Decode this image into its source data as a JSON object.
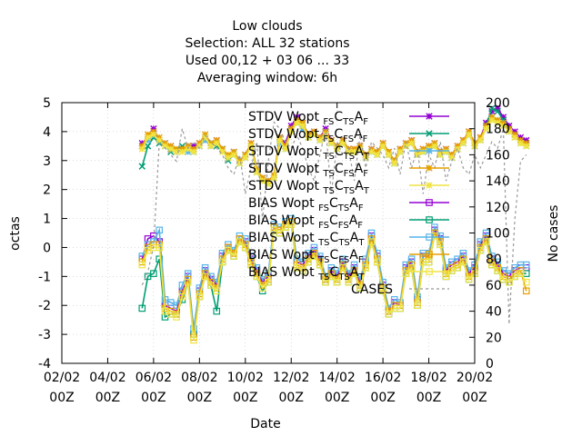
{
  "chart_data": {
    "type": "line",
    "title_lines": [
      "Low clouds",
      "Selection: ALL      32 stations",
      "Used  00,12  + 03 06 ... 33",
      "Averaging window:  6h"
    ],
    "xlabel": "Date",
    "ylabel": "octas",
    "y2label": "No cases",
    "xlim": [
      "2024-02-02 00:00",
      "2024-02-20 00:00"
    ],
    "ylim": [
      -4,
      5
    ],
    "y2lim": [
      0,
      200
    ],
    "xticks": [
      {
        "day": "02/02",
        "hour": "00Z"
      },
      {
        "day": "04/02",
        "hour": "00Z"
      },
      {
        "day": "06/02",
        "hour": "00Z"
      },
      {
        "day": "08/02",
        "hour": "00Z"
      },
      {
        "day": "10/02",
        "hour": "00Z"
      },
      {
        "day": "12/02",
        "hour": "00Z"
      },
      {
        "day": "14/02",
        "hour": "00Z"
      },
      {
        "day": "16/02",
        "hour": "00Z"
      },
      {
        "day": "18/02",
        "hour": "00Z"
      },
      {
        "day": "20/02",
        "hour": "00Z"
      }
    ],
    "yticks": [
      "-4",
      "-3",
      "-2",
      "-1",
      "0",
      "1",
      "2",
      "3",
      "4",
      "5"
    ],
    "y2ticks": [
      "0",
      "20",
      "40",
      "60",
      "80",
      "100",
      "120",
      "140",
      "160",
      "180",
      "200"
    ],
    "x_hours": [
      84,
      90,
      96,
      102,
      108,
      114,
      120,
      126,
      132,
      138,
      144,
      150,
      156,
      162,
      168,
      174,
      180,
      186,
      192,
      198,
      204,
      210,
      216,
      222,
      228,
      234,
      240,
      246,
      252,
      258,
      264,
      270,
      276,
      282,
      288,
      294,
      300,
      306,
      312,
      318,
      324,
      330,
      336,
      342,
      348,
      354,
      360,
      366,
      372,
      378,
      384,
      390,
      396,
      402,
      408,
      414,
      420,
      426,
      432,
      438,
      444,
      450,
      456,
      462,
      468,
      474,
      480,
      486
    ],
    "series": [
      {
        "name": "STDV Wopt",
        "sub": [
          "FS",
          "C",
          "TS",
          "A",
          "F"
        ],
        "color": "#9400d3",
        "marker": "star",
        "axis": "y",
        "values": [
          3.6,
          3.8,
          4.1,
          3.7,
          3.6,
          3.5,
          3.3,
          3.4,
          3.5,
          3.5,
          3.6,
          3.8,
          3.5,
          3.7,
          3.4,
          3.1,
          3.3,
          3.0,
          3.2,
          3.6,
          2.7,
          2.4,
          2.3,
          2.5,
          3.8,
          3.6,
          4.2,
          4.5,
          4.3,
          3.9,
          4.0,
          3.8,
          4.1,
          3.7,
          3.5,
          3.7,
          3.4,
          3.4,
          3.5,
          3.2,
          3.4,
          3.3,
          3.6,
          3.3,
          3.0,
          3.4,
          3.6,
          3.7,
          3.3,
          3.4,
          3.5,
          3.6,
          3.3,
          3.4,
          3.2,
          3.5,
          3.7,
          4.0,
          3.6,
          3.8,
          4.3,
          4.7,
          4.8,
          4.5,
          4.2,
          4.0,
          3.8,
          3.7
        ]
      },
      {
        "name": "STDV Wopt",
        "sub": [
          "FS",
          "C",
          "FS",
          "A",
          "F"
        ],
        "color": "#009e73",
        "marker": "cross",
        "axis": "y",
        "values": [
          2.8,
          3.5,
          3.8,
          3.6,
          3.5,
          3.3,
          3.4,
          3.5,
          3.4,
          3.3,
          3.5,
          3.8,
          3.6,
          3.5,
          3.4,
          3.0,
          3.2,
          2.9,
          3.1,
          3.5,
          2.6,
          2.3,
          2.2,
          2.4,
          3.7,
          3.5,
          4.1,
          4.4,
          4.2,
          3.8,
          3.9,
          3.7,
          4.0,
          3.6,
          3.4,
          3.6,
          3.3,
          3.3,
          3.4,
          3.1,
          3.3,
          3.2,
          3.5,
          3.2,
          2.9,
          3.3,
          3.5,
          3.6,
          3.2,
          3.3,
          3.4,
          3.5,
          3.2,
          3.3,
          3.1,
          3.4,
          3.6,
          3.9,
          3.5,
          3.7,
          4.2,
          4.8,
          4.7,
          4.4,
          4.1,
          3.9,
          3.7,
          3.6
        ]
      },
      {
        "name": "STDV Wopt",
        "sub": [
          "TS",
          "C",
          "TS",
          "A",
          "T"
        ],
        "color": "#56b4e9",
        "marker": "star",
        "axis": "y",
        "values": [
          3.5,
          3.7,
          3.9,
          3.7,
          3.6,
          3.4,
          3.3,
          3.4,
          3.3,
          3.3,
          3.5,
          3.7,
          3.5,
          3.6,
          3.4,
          3.1,
          3.3,
          3.0,
          3.2,
          3.5,
          2.7,
          2.4,
          2.3,
          2.5,
          3.6,
          3.4,
          4.0,
          4.3,
          4.1,
          3.8,
          3.9,
          3.7,
          4.0,
          3.6,
          3.4,
          3.6,
          3.3,
          3.3,
          3.4,
          3.1,
          3.3,
          3.2,
          3.5,
          3.2,
          2.9,
          3.3,
          3.5,
          3.6,
          3.2,
          3.3,
          3.4,
          3.5,
          3.2,
          3.3,
          3.1,
          3.4,
          3.6,
          3.9,
          3.5,
          3.7,
          4.1,
          4.5,
          4.4,
          4.3,
          4.0,
          3.8,
          3.6,
          3.5
        ]
      },
      {
        "name": "STDV Wopt",
        "sub": [
          "TS",
          "C",
          "FS",
          "A",
          "F"
        ],
        "color": "#e69f00",
        "marker": "star",
        "axis": "y",
        "values": [
          3.5,
          3.9,
          4.0,
          3.8,
          3.6,
          3.5,
          3.4,
          3.4,
          3.5,
          3.4,
          3.6,
          3.9,
          3.6,
          3.7,
          3.4,
          3.2,
          3.3,
          3.0,
          3.2,
          3.6,
          2.7,
          2.4,
          2.3,
          2.5,
          3.8,
          3.5,
          4.1,
          4.4,
          4.3,
          3.9,
          4.0,
          3.8,
          4.0,
          3.7,
          3.5,
          3.7,
          3.4,
          3.4,
          3.5,
          3.2,
          3.4,
          3.3,
          3.6,
          3.3,
          3.0,
          3.4,
          3.6,
          3.7,
          3.3,
          3.4,
          3.5,
          3.6,
          3.3,
          3.4,
          3.2,
          3.5,
          3.7,
          4.0,
          3.6,
          3.8,
          4.2,
          4.5,
          4.4,
          4.3,
          4.1,
          3.9,
          3.7,
          3.6
        ]
      },
      {
        "name": "STDV Wopt",
        "sub": [
          "TS",
          "C",
          "TS",
          "A",
          "T"
        ],
        "color": "#f0e442",
        "marker": "star",
        "axis": "y",
        "values": [
          3.4,
          3.8,
          3.9,
          3.7,
          3.5,
          3.4,
          3.3,
          3.3,
          3.4,
          3.3,
          3.5,
          3.8,
          3.5,
          3.6,
          3.3,
          3.1,
          3.2,
          2.9,
          3.1,
          3.5,
          2.6,
          2.3,
          2.2,
          2.4,
          3.7,
          3.4,
          4.0,
          4.3,
          4.2,
          3.8,
          3.9,
          3.7,
          3.9,
          3.6,
          3.4,
          3.6,
          3.3,
          3.3,
          3.4,
          3.1,
          3.3,
          3.2,
          3.5,
          3.2,
          2.9,
          3.3,
          3.5,
          3.6,
          3.2,
          3.3,
          3.4,
          3.5,
          3.2,
          3.3,
          3.1,
          3.4,
          3.6,
          3.9,
          3.5,
          3.7,
          4.1,
          4.4,
          4.3,
          4.2,
          4.0,
          3.8,
          3.6,
          3.5
        ]
      },
      {
        "name": "BIAS Wopt",
        "sub": [
          "FS",
          "C",
          "TS",
          "A",
          "F"
        ],
        "color": "#9400d3",
        "marker": "square",
        "axis": "y",
        "values": [
          -0.4,
          0.3,
          0.4,
          0.2,
          -2.0,
          -2.1,
          -2.2,
          -1.5,
          -1.0,
          -3.0,
          -1.5,
          -0.8,
          -1.1,
          -1.3,
          -0.3,
          0.0,
          -0.2,
          0.3,
          0.2,
          -0.4,
          -0.8,
          -1.2,
          -1.0,
          0.7,
          0.6,
          0.8,
          0.9,
          -0.5,
          -0.6,
          -0.3,
          -0.1,
          -0.4,
          -1.1,
          -0.8,
          -1.0,
          -0.5,
          -1.0,
          -0.7,
          -1.2,
          -0.5,
          0.4,
          -0.3,
          -1.3,
          -2.2,
          -1.9,
          -2.0,
          -0.7,
          -0.5,
          -1.8,
          -0.3,
          -0.3,
          0.6,
          0.3,
          -0.8,
          -0.6,
          -0.5,
          -0.3,
          -0.9,
          -0.7,
          0.1,
          0.4,
          -0.4,
          -0.6,
          -0.9,
          -1.0,
          -0.8,
          -0.7,
          -0.7
        ]
      },
      {
        "name": "BIAS Wopt",
        "sub": [
          "FS",
          "C",
          "FS",
          "A",
          "F"
        ],
        "color": "#009e73",
        "marker": "square",
        "axis": "y",
        "values": [
          -2.1,
          -1.0,
          -0.9,
          -0.4,
          -2.4,
          -2.3,
          -2.3,
          -1.8,
          -1.2,
          -3.0,
          -1.7,
          -1.0,
          -1.3,
          -2.2,
          -0.5,
          -0.1,
          -0.3,
          0.2,
          0.0,
          -0.6,
          -1.0,
          -1.5,
          -1.2,
          0.6,
          0.5,
          0.7,
          0.8,
          -0.7,
          -0.8,
          -0.5,
          -0.3,
          -0.6,
          -1.2,
          -1.0,
          -1.2,
          -0.7,
          -1.2,
          -0.9,
          -1.4,
          -0.7,
          0.2,
          -0.5,
          -1.5,
          -2.3,
          -2.1,
          -2.1,
          -0.9,
          -0.7,
          -2.0,
          -0.5,
          -0.5,
          0.4,
          0.1,
          -1.0,
          -0.8,
          -0.7,
          -0.5,
          -1.1,
          -0.9,
          -0.1,
          0.2,
          -0.6,
          -0.8,
          -1.1,
          -1.2,
          -1.0,
          -0.9,
          -0.9
        ]
      },
      {
        "name": "BIAS Wopt",
        "sub": [
          "TS",
          "C",
          "TS",
          "A",
          "T"
        ],
        "color": "#56b4e9",
        "marker": "square",
        "axis": "y",
        "values": [
          -0.3,
          0.1,
          0.2,
          0.6,
          -1.8,
          -1.9,
          -2.0,
          -1.3,
          -0.9,
          -2.8,
          -1.4,
          -0.7,
          -1.0,
          -1.2,
          -0.2,
          0.1,
          -0.1,
          0.4,
          0.3,
          -0.3,
          -0.7,
          -1.1,
          -0.9,
          0.8,
          0.7,
          0.9,
          1.0,
          -0.4,
          -0.5,
          -0.2,
          0.0,
          -0.3,
          -1.0,
          -0.7,
          -0.9,
          -0.4,
          -0.9,
          -0.6,
          -1.1,
          -0.4,
          0.5,
          -0.2,
          -1.2,
          -2.1,
          -1.8,
          -1.9,
          -0.6,
          -0.4,
          -1.7,
          -0.2,
          -0.2,
          0.7,
          0.4,
          -0.7,
          -0.5,
          -0.4,
          -0.2,
          -0.8,
          -0.6,
          0.2,
          0.5,
          -0.3,
          -0.5,
          -0.8,
          -0.9,
          -0.7,
          -0.6,
          -0.6
        ]
      },
      {
        "name": "BIAS Wopt",
        "sub": [
          "TS",
          "C",
          "FS",
          "A",
          "F"
        ],
        "color": "#e69f00",
        "marker": "square",
        "axis": "y",
        "values": [
          -0.5,
          0.0,
          0.1,
          0.1,
          -2.1,
          -2.2,
          -2.3,
          -1.6,
          -1.1,
          -3.1,
          -1.6,
          -0.9,
          -1.2,
          -1.4,
          -0.4,
          0.0,
          -0.2,
          0.3,
          0.1,
          -0.5,
          -0.9,
          -1.3,
          -1.1,
          0.7,
          0.6,
          0.8,
          0.9,
          -0.6,
          -0.7,
          -0.4,
          -0.2,
          -0.5,
          -1.1,
          -0.9,
          -1.1,
          -0.6,
          -1.1,
          -0.8,
          -1.3,
          -0.6,
          0.3,
          -0.4,
          -1.4,
          -2.2,
          -2.0,
          -2.0,
          -0.8,
          -0.6,
          -1.9,
          -0.4,
          -0.4,
          0.5,
          0.2,
          -0.9,
          -0.7,
          -0.6,
          -0.4,
          -1.0,
          -0.8,
          0.0,
          0.3,
          -0.5,
          -0.7,
          -1.0,
          -1.1,
          -0.9,
          -0.8,
          -1.5
        ]
      },
      {
        "name": "BIAS Wopt",
        "sub": [
          "TS",
          "C",
          "TS",
          "A",
          "T"
        ],
        "color": "#f0e442",
        "marker": "square",
        "axis": "y",
        "values": [
          -0.6,
          -0.1,
          0.0,
          0.0,
          -2.2,
          -2.3,
          -2.4,
          -1.7,
          -1.2,
          -3.2,
          -1.7,
          -1.0,
          -1.3,
          -1.5,
          -0.5,
          -0.1,
          -0.3,
          0.2,
          0.0,
          -0.6,
          -1.0,
          -1.4,
          -1.2,
          0.6,
          0.5,
          0.7,
          0.8,
          -0.7,
          -0.8,
          -0.5,
          -0.3,
          -0.6,
          -1.2,
          -1.0,
          -1.2,
          -0.7,
          -1.2,
          -0.9,
          -1.4,
          -0.7,
          0.2,
          -0.5,
          -1.5,
          -2.3,
          -2.1,
          -2.1,
          -0.9,
          -0.7,
          -2.0,
          -0.5,
          -0.5,
          0.4,
          0.1,
          -1.0,
          -0.8,
          -0.7,
          -0.5,
          -1.1,
          -0.9,
          -0.1,
          0.2,
          -0.6,
          -0.8,
          -1.1,
          -1.2,
          -1.0,
          -0.9,
          -1.2
        ]
      },
      {
        "name": "CASES",
        "sub": [],
        "color": "#999999",
        "marker": "none",
        "dash": true,
        "axis": "y2",
        "values": [
          60,
          70,
          90,
          170,
          165,
          160,
          155,
          180,
          165,
          170,
          165,
          175,
          170,
          165,
          160,
          150,
          145,
          160,
          130,
          150,
          170,
          110,
          155,
          185,
          180,
          170,
          165,
          175,
          165,
          150,
          140,
          160,
          180,
          130,
          170,
          160,
          165,
          140,
          175,
          150,
          170,
          165,
          160,
          150,
          165,
          145,
          170,
          150,
          165,
          130,
          160,
          150,
          170,
          140,
          155,
          165,
          150,
          145,
          160,
          150,
          160,
          170,
          165,
          180,
          30,
          110,
          155,
          160
        ]
      }
    ]
  }
}
